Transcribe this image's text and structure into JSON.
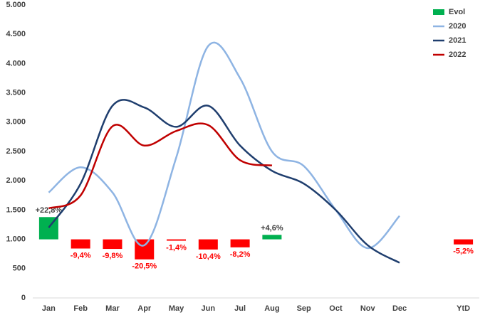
{
  "chart_data": {
    "type": "combo",
    "categories": [
      "Jan",
      "Feb",
      "Mar",
      "Apr",
      "May",
      "Jun",
      "Jul",
      "Aug",
      "Sep",
      "Oct",
      "Nov",
      "Dec",
      null,
      "YtD"
    ],
    "ylim": [
      0,
      5000
    ],
    "yticks": [
      0,
      500,
      {
        "value": 1000,
        "label": "1.000"
      },
      {
        "value": 1500,
        "label": "1.500"
      },
      {
        "value": 2000,
        "label": "2.000"
      },
      {
        "value": 2500,
        "label": "2.500"
      },
      {
        "value": 3000,
        "label": "3.000"
      },
      {
        "value": 3500,
        "label": "3.500"
      },
      {
        "value": 4000,
        "label": "4.000"
      },
      {
        "value": 4500,
        "label": "4.500"
      },
      {
        "value": 5000,
        "label": "5.000"
      }
    ],
    "y2lim": [
      -60,
      240
    ],
    "grid": false,
    "legend": "top-right",
    "series": [
      {
        "name": "Evol",
        "type": "bar",
        "axis": "y2",
        "color": "#00b050",
        "negative_color": "#ff0000",
        "values": [
          22.8,
          -9.4,
          -9.8,
          -20.5,
          -1.4,
          -10.4,
          -8.2,
          4.6,
          null,
          null,
          null,
          null,
          null,
          -5.2
        ],
        "value_labels": [
          "+22,8%",
          "-9,4%",
          "-9,8%",
          "-20,5%",
          "-1,4%",
          "-10,4%",
          "-8,2%",
          "+4,6%",
          null,
          null,
          null,
          null,
          null,
          "-5,2%"
        ]
      },
      {
        "name": "2020",
        "type": "line",
        "color": "#8eb4e3",
        "values": [
          1800,
          2230,
          1800,
          900,
          2400,
          4300,
          3750,
          2500,
          2250,
          1500,
          850,
          1400,
          null,
          null
        ]
      },
      {
        "name": "2021",
        "type": "line",
        "color": "#1f3e6e",
        "values": [
          1200,
          1950,
          3280,
          3250,
          2920,
          3280,
          2600,
          2170,
          1950,
          1500,
          900,
          600,
          null,
          null
        ]
      },
      {
        "name": "2022",
        "type": "line",
        "color": "#c00000",
        "values": [
          1530,
          1750,
          2930,
          2600,
          2850,
          2950,
          2350,
          2260,
          null,
          null,
          null,
          null,
          null,
          null
        ]
      }
    ]
  }
}
